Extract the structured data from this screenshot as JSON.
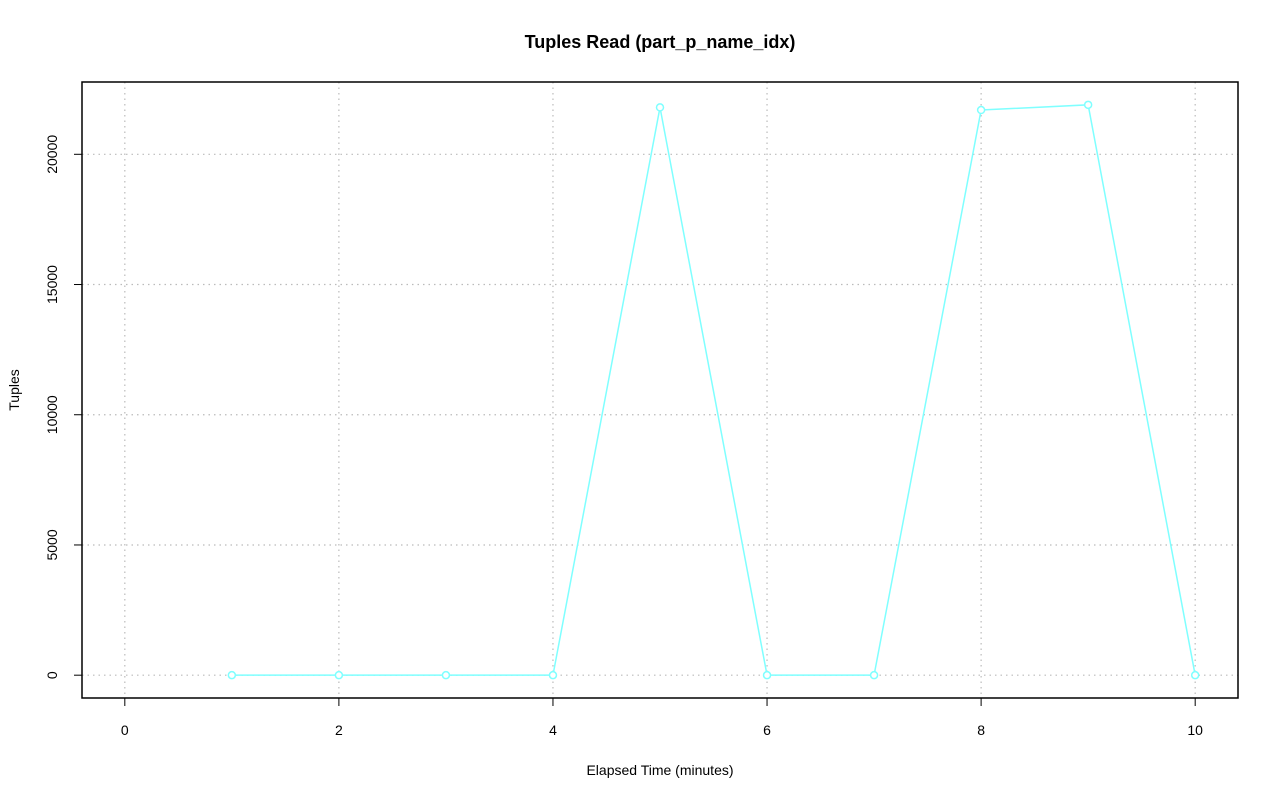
{
  "chart_data": {
    "type": "line",
    "title": "Tuples Read (part_p_name_idx)",
    "x_label": "Elapsed Time (minutes)",
    "y_label": "Tuples",
    "x": [
      1,
      2,
      3,
      4,
      5,
      6,
      7,
      8,
      9,
      10
    ],
    "values": [
      0,
      0,
      0,
      0,
      21800,
      0,
      0,
      21700,
      21900,
      0
    ],
    "color": "#7fffff",
    "xlim": [
      -0.4,
      10.4
    ],
    "xticks": [
      0,
      2,
      4,
      6,
      8,
      10
    ],
    "ylim": [
      -876,
      22776
    ],
    "yticks": [
      0,
      5000,
      10000,
      15000,
      20000
    ],
    "grid": true
  }
}
